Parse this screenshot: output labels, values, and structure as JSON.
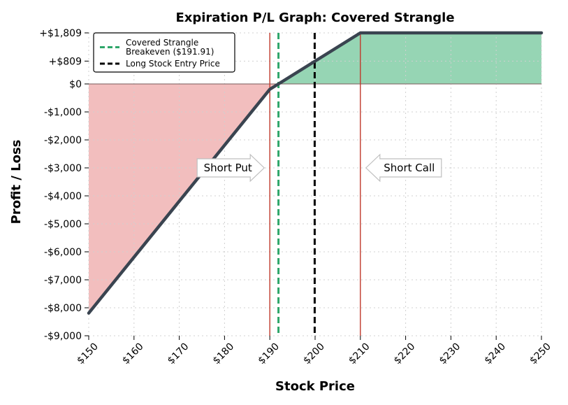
{
  "chart_data": {
    "type": "line",
    "title": "Expiration P/L Graph: Covered Strangle",
    "xlabel": "Stock Price",
    "ylabel": "Profit / Loss",
    "xlim": [
      150,
      250
    ],
    "ylim": [
      -9000,
      1809
    ],
    "x_ticks": [
      150,
      160,
      170,
      180,
      190,
      200,
      210,
      220,
      230,
      240,
      250
    ],
    "x_tick_labels": [
      "$150",
      "$160",
      "$170",
      "$180",
      "$190",
      "$200",
      "$210",
      "$220",
      "$230",
      "$240",
      "$250"
    ],
    "y_ticks": [
      1809,
      809,
      0,
      -1000,
      -2000,
      -3000,
      -4000,
      -5000,
      -6000,
      -7000,
      -8000,
      -9000
    ],
    "y_tick_labels": [
      "+$1,809",
      "+$809",
      "$0",
      "-$1,000",
      "-$2,000",
      "-$3,000",
      "-$4,000",
      "-$5,000",
      "-$6,000",
      "-$7,000",
      "-$8,000",
      "-$9,000"
    ],
    "grid": true,
    "series": [
      {
        "x": [
          150,
          190,
          191.91,
          210,
          250
        ],
        "values": [
          -8191,
          -191,
          0,
          1809,
          1809
        ],
        "color": "#3a4450"
      }
    ],
    "vertical_lines": [
      {
        "x": 191.91,
        "style": "dashed",
        "color": "#2ea66a",
        "label": "Covered Strangle\nBreakeven ($191.91)"
      },
      {
        "x": 199.91,
        "style": "dashed",
        "color": "#000000",
        "label": "Long Stock Entry Price"
      },
      {
        "x": 190,
        "style": "solid",
        "color": "#c0392b",
        "label": ""
      },
      {
        "x": 210,
        "style": "solid",
        "color": "#c0392b",
        "label": ""
      }
    ],
    "annotations": [
      {
        "text": "Short Put",
        "x": 190,
        "y": -3000,
        "arrow": "right"
      },
      {
        "text": "Short Call",
        "x": 210,
        "y": -3000,
        "arrow": "left"
      }
    ],
    "legend_position": "top-left",
    "fill_colors": {
      "profit": "#96d5b4",
      "loss": "#f2bebe"
    }
  }
}
